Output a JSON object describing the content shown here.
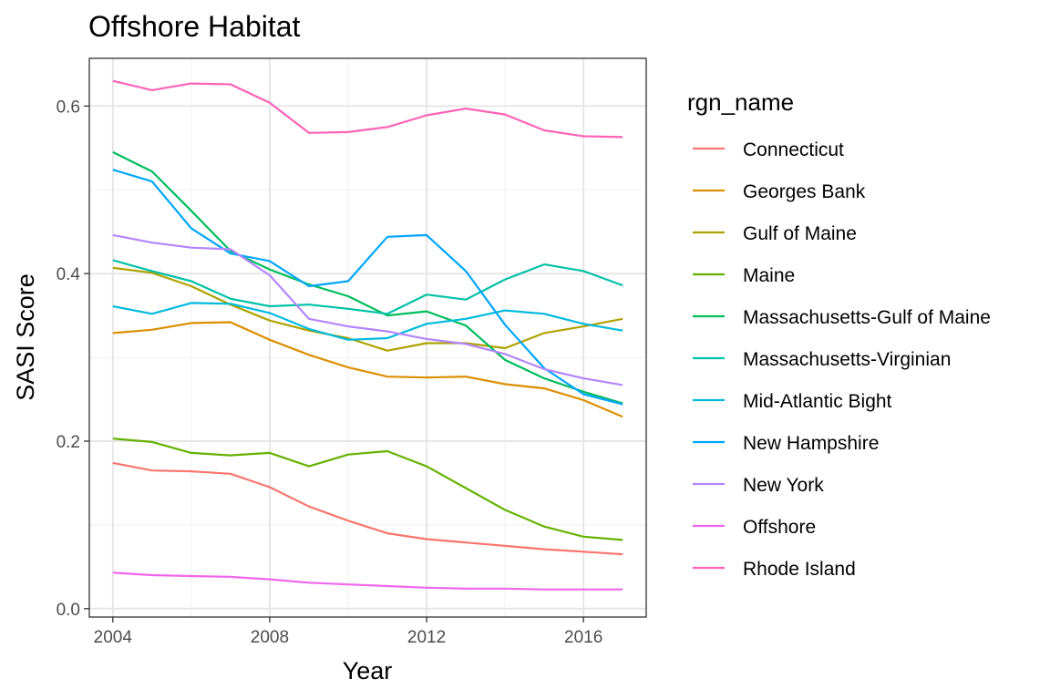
{
  "chart_data": {
    "type": "line",
    "title": "Offshore Habitat",
    "xlabel": "Year",
    "ylabel": "SASI Score",
    "xlim": [
      2003.4,
      2017.6
    ],
    "ylim": [
      -0.01,
      0.657
    ],
    "x_ticks": [
      2004,
      2008,
      2012,
      2016
    ],
    "x_tick_labels": [
      "2004",
      "2008",
      "2012",
      "2016"
    ],
    "y_ticks": [
      0.0,
      0.2,
      0.4,
      0.6
    ],
    "y_tick_labels": [
      "0.0",
      "0.2",
      "0.4",
      "0.6"
    ],
    "grid": true,
    "legend": {
      "title": "rgn_name",
      "position": "right"
    },
    "x": [
      2004,
      2005,
      2006,
      2007,
      2008,
      2009,
      2010,
      2011,
      2012,
      2013,
      2014,
      2015,
      2016,
      2017
    ],
    "series": [
      {
        "name": "Connecticut",
        "color": "#F8766D",
        "values": [
          0.174,
          0.165,
          0.164,
          0.161,
          0.145,
          0.122,
          0.105,
          0.09,
          0.083,
          0.079,
          0.075,
          0.071,
          0.068,
          0.065
        ]
      },
      {
        "name": "Georges Bank",
        "color": "#DB8E00",
        "values": [
          0.329,
          0.333,
          0.341,
          0.342,
          0.321,
          0.303,
          0.288,
          0.277,
          0.276,
          0.277,
          0.268,
          0.263,
          0.249,
          0.229
        ]
      },
      {
        "name": "Gulf of Maine",
        "color": "#AEA200",
        "values": [
          0.407,
          0.401,
          0.385,
          0.363,
          0.344,
          0.332,
          0.323,
          0.308,
          0.317,
          0.317,
          0.311,
          0.329,
          0.337,
          0.346
        ]
      },
      {
        "name": "Maine",
        "color": "#64B200",
        "values": [
          0.203,
          0.199,
          0.186,
          0.183,
          0.186,
          0.17,
          0.184,
          0.188,
          0.17,
          0.144,
          0.118,
          0.098,
          0.086,
          0.082
        ]
      },
      {
        "name": "Massachusetts-Gulf of Maine",
        "color": "#00BD5C",
        "values": [
          0.545,
          0.522,
          0.475,
          0.427,
          0.405,
          0.387,
          0.373,
          0.35,
          0.355,
          0.338,
          0.297,
          0.275,
          0.259,
          0.245
        ]
      },
      {
        "name": "Massachusetts-Virginian",
        "color": "#00C1A7",
        "values": [
          0.416,
          0.403,
          0.391,
          0.37,
          0.361,
          0.363,
          0.358,
          0.352,
          0.375,
          0.369,
          0.393,
          0.411,
          0.403,
          0.386
        ]
      },
      {
        "name": "Mid-Atlantic Bight",
        "color": "#00BADE",
        "values": [
          0.361,
          0.352,
          0.365,
          0.364,
          0.353,
          0.334,
          0.321,
          0.323,
          0.34,
          0.346,
          0.356,
          0.352,
          0.34,
          0.332
        ]
      },
      {
        "name": "New Hampshire",
        "color": "#00A6FF",
        "values": [
          0.524,
          0.51,
          0.454,
          0.424,
          0.415,
          0.385,
          0.391,
          0.444,
          0.446,
          0.403,
          0.339,
          0.287,
          0.256,
          0.244
        ]
      },
      {
        "name": "New York",
        "color": "#B385FF",
        "values": [
          0.446,
          0.437,
          0.431,
          0.429,
          0.398,
          0.346,
          0.337,
          0.331,
          0.322,
          0.316,
          0.304,
          0.286,
          0.275,
          0.267
        ]
      },
      {
        "name": "Offshore",
        "color": "#EF67EB",
        "values": [
          0.043,
          0.04,
          0.039,
          0.038,
          0.035,
          0.031,
          0.029,
          0.027,
          0.025,
          0.024,
          0.024,
          0.023,
          0.023,
          0.023
        ]
      },
      {
        "name": "Rhode Island",
        "color": "#FF63B6",
        "values": [
          0.63,
          0.619,
          0.627,
          0.626,
          0.604,
          0.568,
          0.569,
          0.575,
          0.589,
          0.597,
          0.59,
          0.571,
          0.564,
          0.563
        ]
      }
    ]
  }
}
